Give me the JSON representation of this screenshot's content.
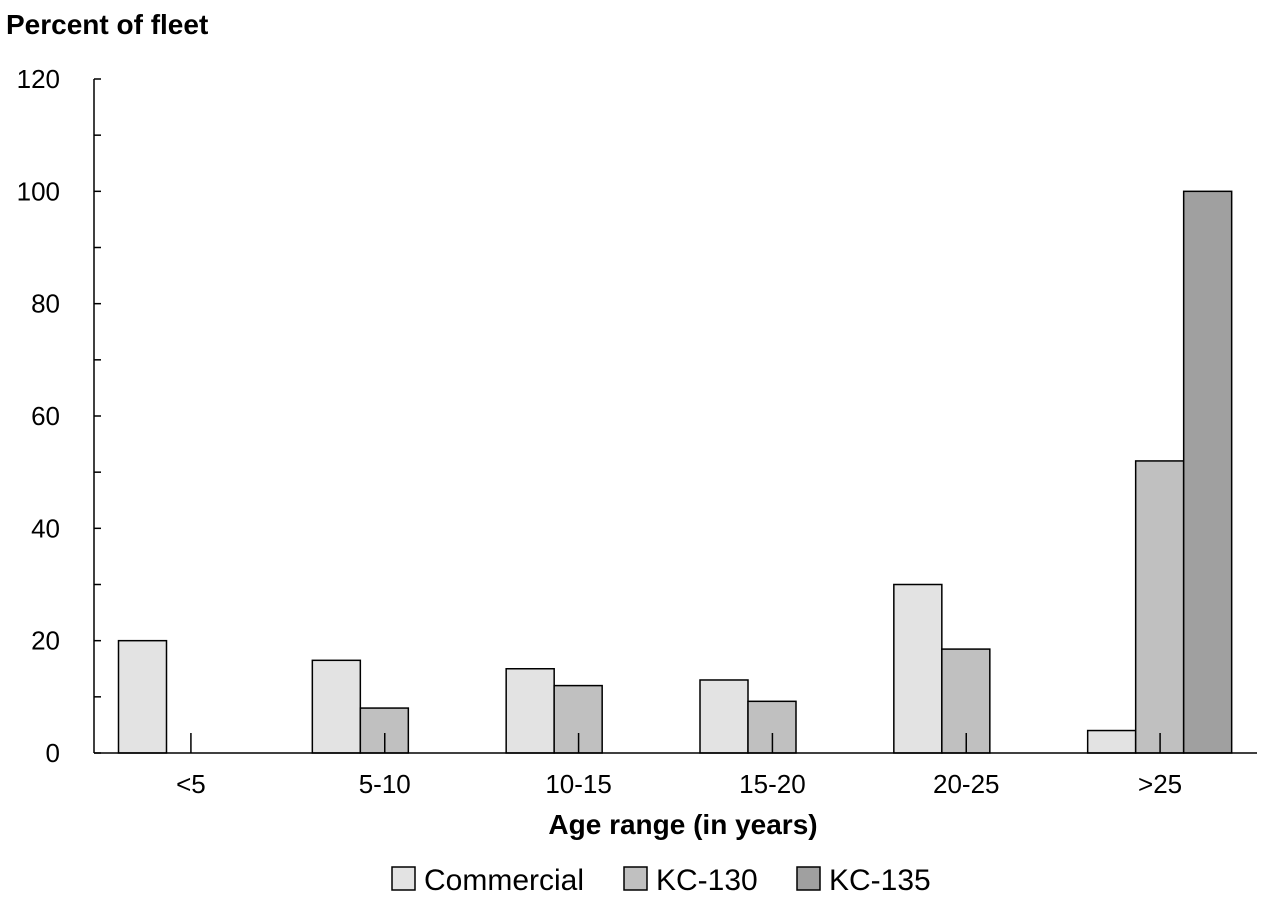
{
  "chart_data": {
    "type": "bar",
    "ylabel": "Percent of fleet",
    "xlabel": "Age range (in years)",
    "categories": [
      "<5",
      "5-10",
      "10-15",
      "15-20",
      "20-25",
      ">25"
    ],
    "ylim": [
      0,
      120
    ],
    "yticks": [
      "0",
      "20",
      "40",
      "60",
      "80",
      "100",
      "120"
    ],
    "grid": false,
    "legend_position": "bottom-center",
    "series": [
      {
        "name": "Commercial",
        "color": "#e3e3e3",
        "values": [
          20,
          16.5,
          15,
          13,
          30,
          4
        ]
      },
      {
        "name": "KC-130",
        "color": "#c0c0c0",
        "values": [
          0,
          8,
          12,
          9.2,
          18.5,
          52
        ]
      },
      {
        "name": "KC-135",
        "color": "#a0a0a0",
        "values": [
          0,
          0,
          0,
          0,
          0,
          100
        ]
      }
    ]
  }
}
